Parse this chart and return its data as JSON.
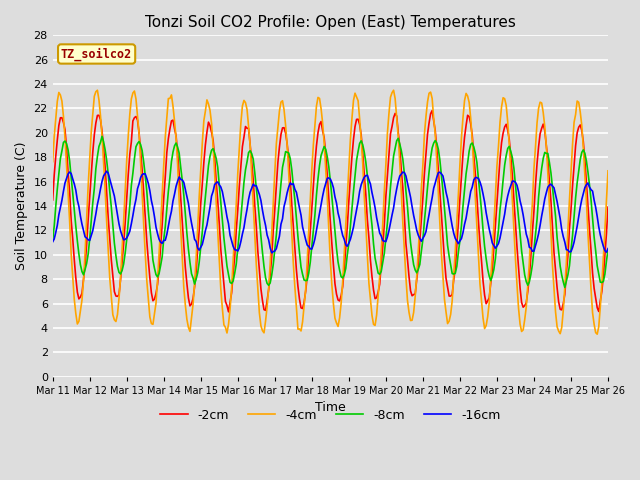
{
  "title": "Tonzi Soil CO2 Profile: Open (East) Temperatures",
  "xlabel": "Time",
  "ylabel": "Soil Temperature (C)",
  "legend_label": "TZ_soilco2",
  "series_labels": [
    "-2cm",
    "-4cm",
    "-8cm",
    "-16cm"
  ],
  "series_colors": [
    "#ff0000",
    "#ffa500",
    "#00cc00",
    "#0000ff"
  ],
  "ylim": [
    0,
    28
  ],
  "xlim": [
    0,
    360
  ],
  "tick_labels": [
    "Mar 11",
    "Mar 12",
    "Mar 13",
    "Mar 14",
    "Mar 15",
    "Mar 16",
    "Mar 17",
    "Mar 18",
    "Mar 19",
    "Mar 20",
    "Mar 21",
    "Mar 22",
    "Mar 23",
    "Mar 24",
    "Mar 25",
    "Mar 26"
  ],
  "tick_positions": [
    0,
    24,
    48,
    72,
    96,
    120,
    144,
    168,
    192,
    216,
    240,
    264,
    288,
    312,
    336,
    360
  ],
  "figsize": [
    6.4,
    4.8
  ],
  "dpi": 100
}
